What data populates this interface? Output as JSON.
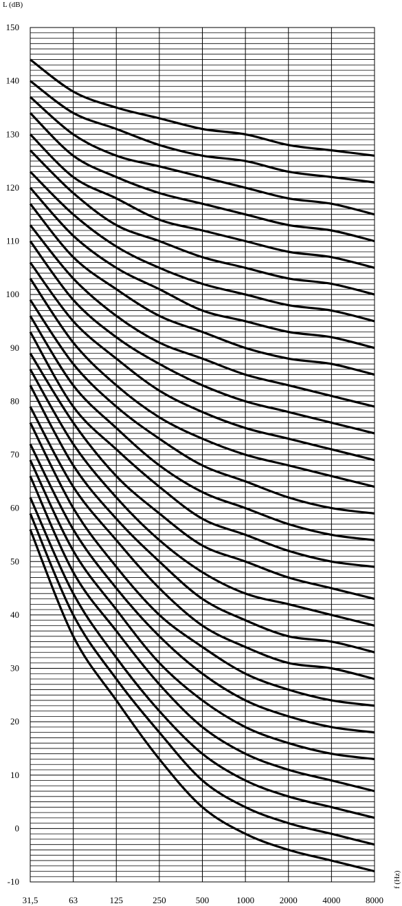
{
  "chart_data": {
    "type": "line",
    "ylabel": "L (dB)",
    "xlabel": "f (Hz)",
    "x": [
      "31,5",
      "63",
      "125",
      "250",
      "500",
      "1000",
      "2000",
      "4000",
      "8000"
    ],
    "ylim": [
      -10,
      150
    ],
    "yticks": [
      "150",
      "140",
      "130",
      "120",
      "110",
      "100",
      "90",
      "80",
      "70",
      "60",
      "50",
      "40",
      "30",
      "20",
      "10",
      "0",
      "-10"
    ],
    "grid": "horizontal lines every 1 dB, vertical lines at each octave band",
    "legend": "none",
    "series": [
      {
        "values": [
          144,
          138,
          135,
          133,
          131,
          130,
          128,
          127,
          126
        ]
      },
      {
        "values": [
          140,
          134,
          131,
          128,
          126,
          125,
          123,
          122,
          121
        ]
      },
      {
        "values": [
          137,
          130,
          126,
          124,
          122,
          120,
          118,
          117,
          115
        ]
      },
      {
        "values": [
          134,
          126,
          122,
          119,
          117,
          115,
          113,
          112,
          110
        ]
      },
      {
        "values": [
          130,
          122,
          118,
          114,
          112,
          110,
          108,
          107,
          105
        ]
      },
      {
        "values": [
          127,
          119,
          113,
          110,
          107,
          105,
          103,
          102,
          100
        ]
      },
      {
        "values": [
          123,
          115,
          109,
          105,
          102,
          100,
          98,
          97,
          95
        ]
      },
      {
        "values": [
          120,
          111,
          105,
          101,
          97,
          95,
          93,
          92,
          90
        ]
      },
      {
        "values": [
          117,
          107,
          101,
          96,
          93,
          90,
          88,
          87,
          85
        ]
      },
      {
        "values": [
          113,
          103,
          96,
          91,
          88,
          85,
          83,
          81,
          79
        ]
      },
      {
        "values": [
          110,
          99,
          92,
          87,
          83,
          80,
          78,
          76,
          74
        ]
      },
      {
        "values": [
          106,
          95,
          88,
          82,
          78,
          75,
          73,
          71,
          69
        ]
      },
      {
        "values": [
          103,
          91,
          83,
          77,
          73,
          70,
          68,
          66,
          64
        ]
      },
      {
        "values": [
          99,
          87,
          79,
          73,
          68,
          65,
          62,
          60,
          59
        ]
      },
      {
        "values": [
          96,
          83,
          75,
          68,
          63,
          60,
          57,
          55,
          54
        ]
      },
      {
        "values": [
          93,
          79,
          71,
          64,
          58,
          55,
          52,
          50,
          49
        ]
      },
      {
        "values": [
          89,
          76,
          66,
          59,
          53,
          50,
          47,
          45,
          43
        ]
      },
      {
        "values": [
          86,
          72,
          62,
          54,
          48,
          44,
          42,
          40,
          38
        ]
      },
      {
        "values": [
          83,
          68,
          58,
          50,
          43,
          39,
          36,
          35,
          33
        ]
      },
      {
        "values": [
          79,
          64,
          54,
          45,
          38,
          34,
          31,
          30,
          28
        ]
      },
      {
        "values": [
          76,
          60,
          49,
          40,
          34,
          29,
          26,
          24,
          23
        ]
      },
      {
        "values": [
          72,
          56,
          45,
          36,
          29,
          24,
          21,
          19,
          18
        ]
      },
      {
        "values": [
          69,
          52,
          41,
          31,
          24,
          19,
          16,
          14,
          13
        ]
      },
      {
        "values": [
          66,
          48,
          37,
          27,
          19,
          14,
          11,
          9,
          7
        ]
      },
      {
        "values": [
          62,
          44,
          32,
          22,
          14,
          9,
          6,
          4,
          2
        ]
      },
      {
        "values": [
          59,
          40,
          28,
          18,
          9,
          4,
          1,
          -1,
          -3
        ]
      },
      {
        "values": [
          56,
          36,
          24,
          13,
          4,
          -1,
          -4,
          -6,
          -8
        ]
      }
    ]
  }
}
